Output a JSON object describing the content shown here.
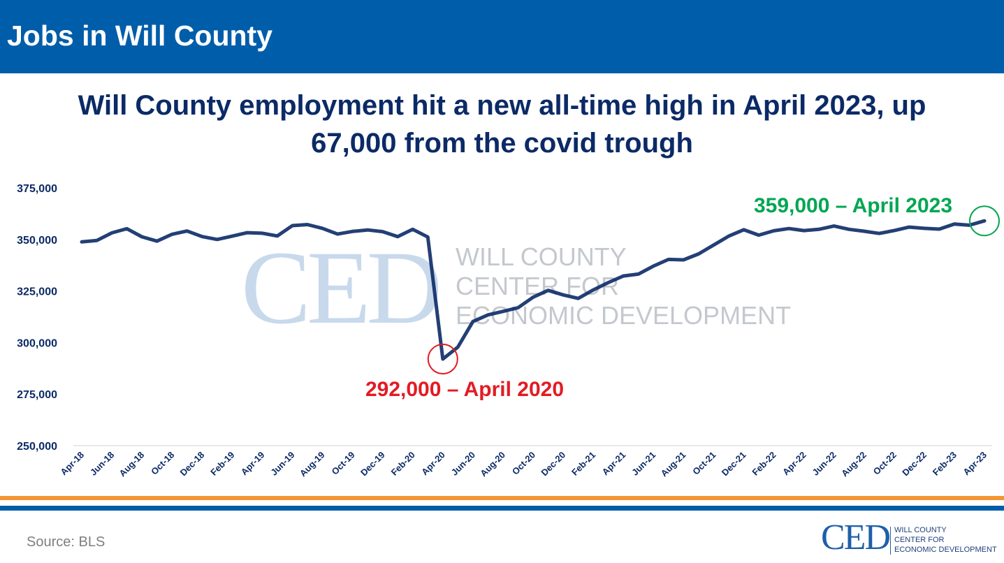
{
  "header": {
    "title": "Jobs in Will County"
  },
  "headline": {
    "line1": "Will County employment hit a new all-time high in April 2023, up",
    "line2": "67,000 from the covid trough"
  },
  "watermark": {
    "letters": "CED",
    "line1": "WILL COUNTY",
    "line2": "CENTER FOR",
    "line3": "ECONOMIC DEVELOPMENT"
  },
  "colors": {
    "header_bg": "#005DAA",
    "line": "#0B2A66",
    "low": "#E31B23",
    "high": "#00A651",
    "stripe_orange": "#F29633"
  },
  "chart_data": {
    "type": "line",
    "title": "",
    "xlabel": "",
    "ylabel": "",
    "ylim": [
      250000,
      375000
    ],
    "yticks": [
      250000,
      275000,
      300000,
      325000,
      350000,
      375000
    ],
    "ytick_labels": [
      "250,000",
      "275,000",
      "300,000",
      "325,000",
      "350,000",
      "375,000"
    ],
    "grid": false,
    "legend": "none",
    "xtick_labels": [
      "Apr-18",
      "Jun-18",
      "Aug-18",
      "Oct-18",
      "Dec-18",
      "Feb-19",
      "Apr-19",
      "Jun-19",
      "Aug-19",
      "Oct-19",
      "Dec-19",
      "Feb-20",
      "Apr-20",
      "Jun-20",
      "Aug-20",
      "Oct-20",
      "Dec-20",
      "Feb-21",
      "Apr-21",
      "Jun-21",
      "Aug-21",
      "Oct-21",
      "Dec-21",
      "Feb-22",
      "Apr-22",
      "Jun-22",
      "Aug-22",
      "Oct-22",
      "Dec-22",
      "Feb-23",
      "Apr-23"
    ],
    "x": [
      "Apr-18",
      "May-18",
      "Jun-18",
      "Jul-18",
      "Aug-18",
      "Sep-18",
      "Oct-18",
      "Nov-18",
      "Dec-18",
      "Jan-19",
      "Feb-19",
      "Mar-19",
      "Apr-19",
      "May-19",
      "Jun-19",
      "Jul-19",
      "Aug-19",
      "Sep-19",
      "Oct-19",
      "Nov-19",
      "Dec-19",
      "Jan-20",
      "Feb-20",
      "Mar-20",
      "Apr-20",
      "May-20",
      "Jun-20",
      "Jul-20",
      "Aug-20",
      "Sep-20",
      "Oct-20",
      "Nov-20",
      "Dec-20",
      "Jan-21",
      "Feb-21",
      "Mar-21",
      "Apr-21",
      "May-21",
      "Jun-21",
      "Jul-21",
      "Aug-21",
      "Sep-21",
      "Oct-21",
      "Nov-21",
      "Dec-21",
      "Jan-22",
      "Feb-22",
      "Mar-22",
      "Apr-22",
      "May-22",
      "Jun-22",
      "Jul-22",
      "Aug-22",
      "Sep-22",
      "Oct-22",
      "Nov-22",
      "Dec-22",
      "Jan-23",
      "Feb-23",
      "Mar-23",
      "Apr-23"
    ],
    "series": [
      {
        "values": [
          348800,
          349500,
          353200,
          355200,
          351300,
          349200,
          352500,
          354100,
          351400,
          350000,
          351600,
          353300,
          353000,
          351700,
          356700,
          357200,
          355400,
          352600,
          353900,
          354600,
          353800,
          351400,
          354900,
          351200,
          292000,
          297800,
          310200,
          313400,
          315100,
          316900,
          322000,
          325300,
          323100,
          321400,
          325500,
          329100,
          332300,
          333200,
          337100,
          340300,
          340100,
          343000,
          347300,
          351600,
          354700,
          352100,
          354200,
          355300,
          354300,
          354900,
          356500,
          354900,
          354000,
          352900,
          354300,
          356000,
          355400,
          355000,
          357500,
          356900,
          359000
        ]
      }
    ],
    "annotations": [
      {
        "text": "292,000 – April 2020",
        "x": "Apr-20",
        "y": 292000,
        "color": "#E31B23"
      },
      {
        "text": "359,000 – April 2023",
        "x": "Apr-23",
        "y": 359000,
        "color": "#00A651"
      }
    ]
  },
  "footer": {
    "source": "Source: BLS"
  },
  "logo": {
    "letters": "CED",
    "line1": "WILL COUNTY",
    "line2": "CENTER FOR",
    "line3": "ECONOMIC DEVELOPMENT"
  }
}
